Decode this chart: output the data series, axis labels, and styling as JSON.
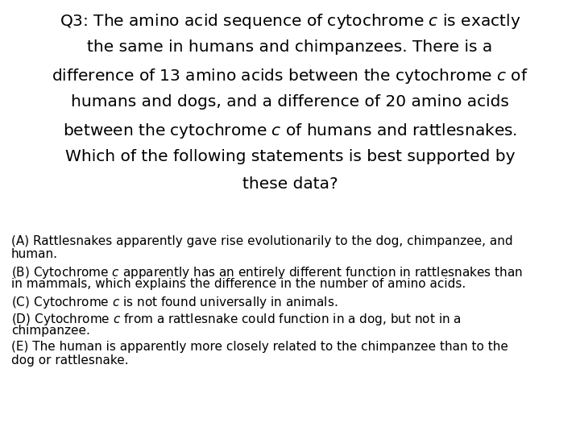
{
  "background_color": "#ffffff",
  "title_lines": [
    "Q3: The amino acid sequence of cytochrome $c$ is exactly",
    "the same in humans and chimpanzees. There is a",
    "difference of 13 amino acids between the cytochrome $c$ of",
    "humans and dogs, and a difference of 20 amino acids",
    "between the cytochrome $c$ of humans and rattlesnakes.",
    "Which of the following statements is best supported by",
    "these data?"
  ],
  "title_fontsize": 14.5,
  "title_color": "#000000",
  "answers": [
    [
      "(A) Rattlesnakes apparently gave rise evolutionarily to the dog, chimpanzee, and",
      "human."
    ],
    [
      "(B) Cytochrome $c$ apparently has an entirely different function in rattlesnakes than",
      "in mammals, which explains the difference in the number of amino acids."
    ],
    [
      "(C) Cytochrome $c$ is not found universally in animals."
    ],
    [
      "(D) Cytochrome $c$ from a rattlesnake could function in a dog, but not in a",
      "chimpanzee."
    ],
    [
      "(E) The human is apparently more closely related to the chimpanzee than to the",
      "dog or rattlesnake."
    ]
  ],
  "answer_fontsize": 11.0,
  "answer_color": "#000000"
}
